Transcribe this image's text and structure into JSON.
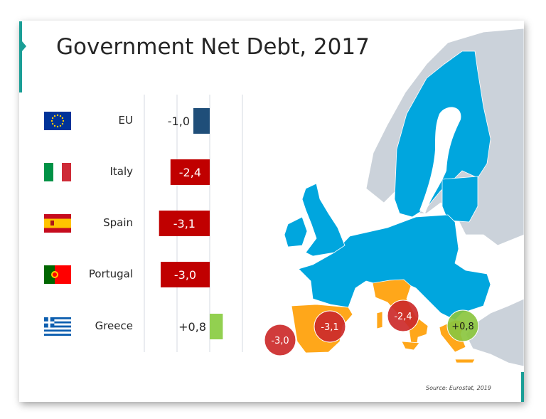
{
  "title": "Government Net Debt, 2017",
  "source": "Source: Eurostat, 2019",
  "colors": {
    "eu_bar": "#1f4e79",
    "negative_bar": "#c00000",
    "positive_bar": "#92d050",
    "eu_map": "#00a6de",
    "highlight_map": "#ffa71a",
    "non_eu_map": "#cbd2da",
    "accent": "#1a9e96",
    "bubble_negative": "#cc2a2a",
    "bubble_positive": "#8bc63f"
  },
  "chart_data": {
    "type": "bar",
    "orientation": "horizontal",
    "title": "Government Net Debt, 2017",
    "categories": [
      "EU",
      "Italy",
      "Spain",
      "Portugal",
      "Greece"
    ],
    "values": [
      -1.0,
      -2.4,
      -3.1,
      -3.0,
      0.8
    ],
    "value_labels": [
      "-1,0",
      "-2,4",
      "-3,1",
      "-3,0",
      "+0,8"
    ],
    "flags": [
      "eu-flag-icon",
      "italy-flag-icon",
      "spain-flag-icon",
      "portugal-flag-icon",
      "greece-flag-icon"
    ],
    "xlim": [
      -4,
      2
    ],
    "grid": true
  },
  "map": {
    "bubbles": [
      {
        "country": "Portugal",
        "label": "-3,0"
      },
      {
        "country": "Spain",
        "label": "-3,1"
      },
      {
        "country": "Italy",
        "label": "-2,4"
      },
      {
        "country": "Greece",
        "label": "+0,8"
      }
    ]
  }
}
